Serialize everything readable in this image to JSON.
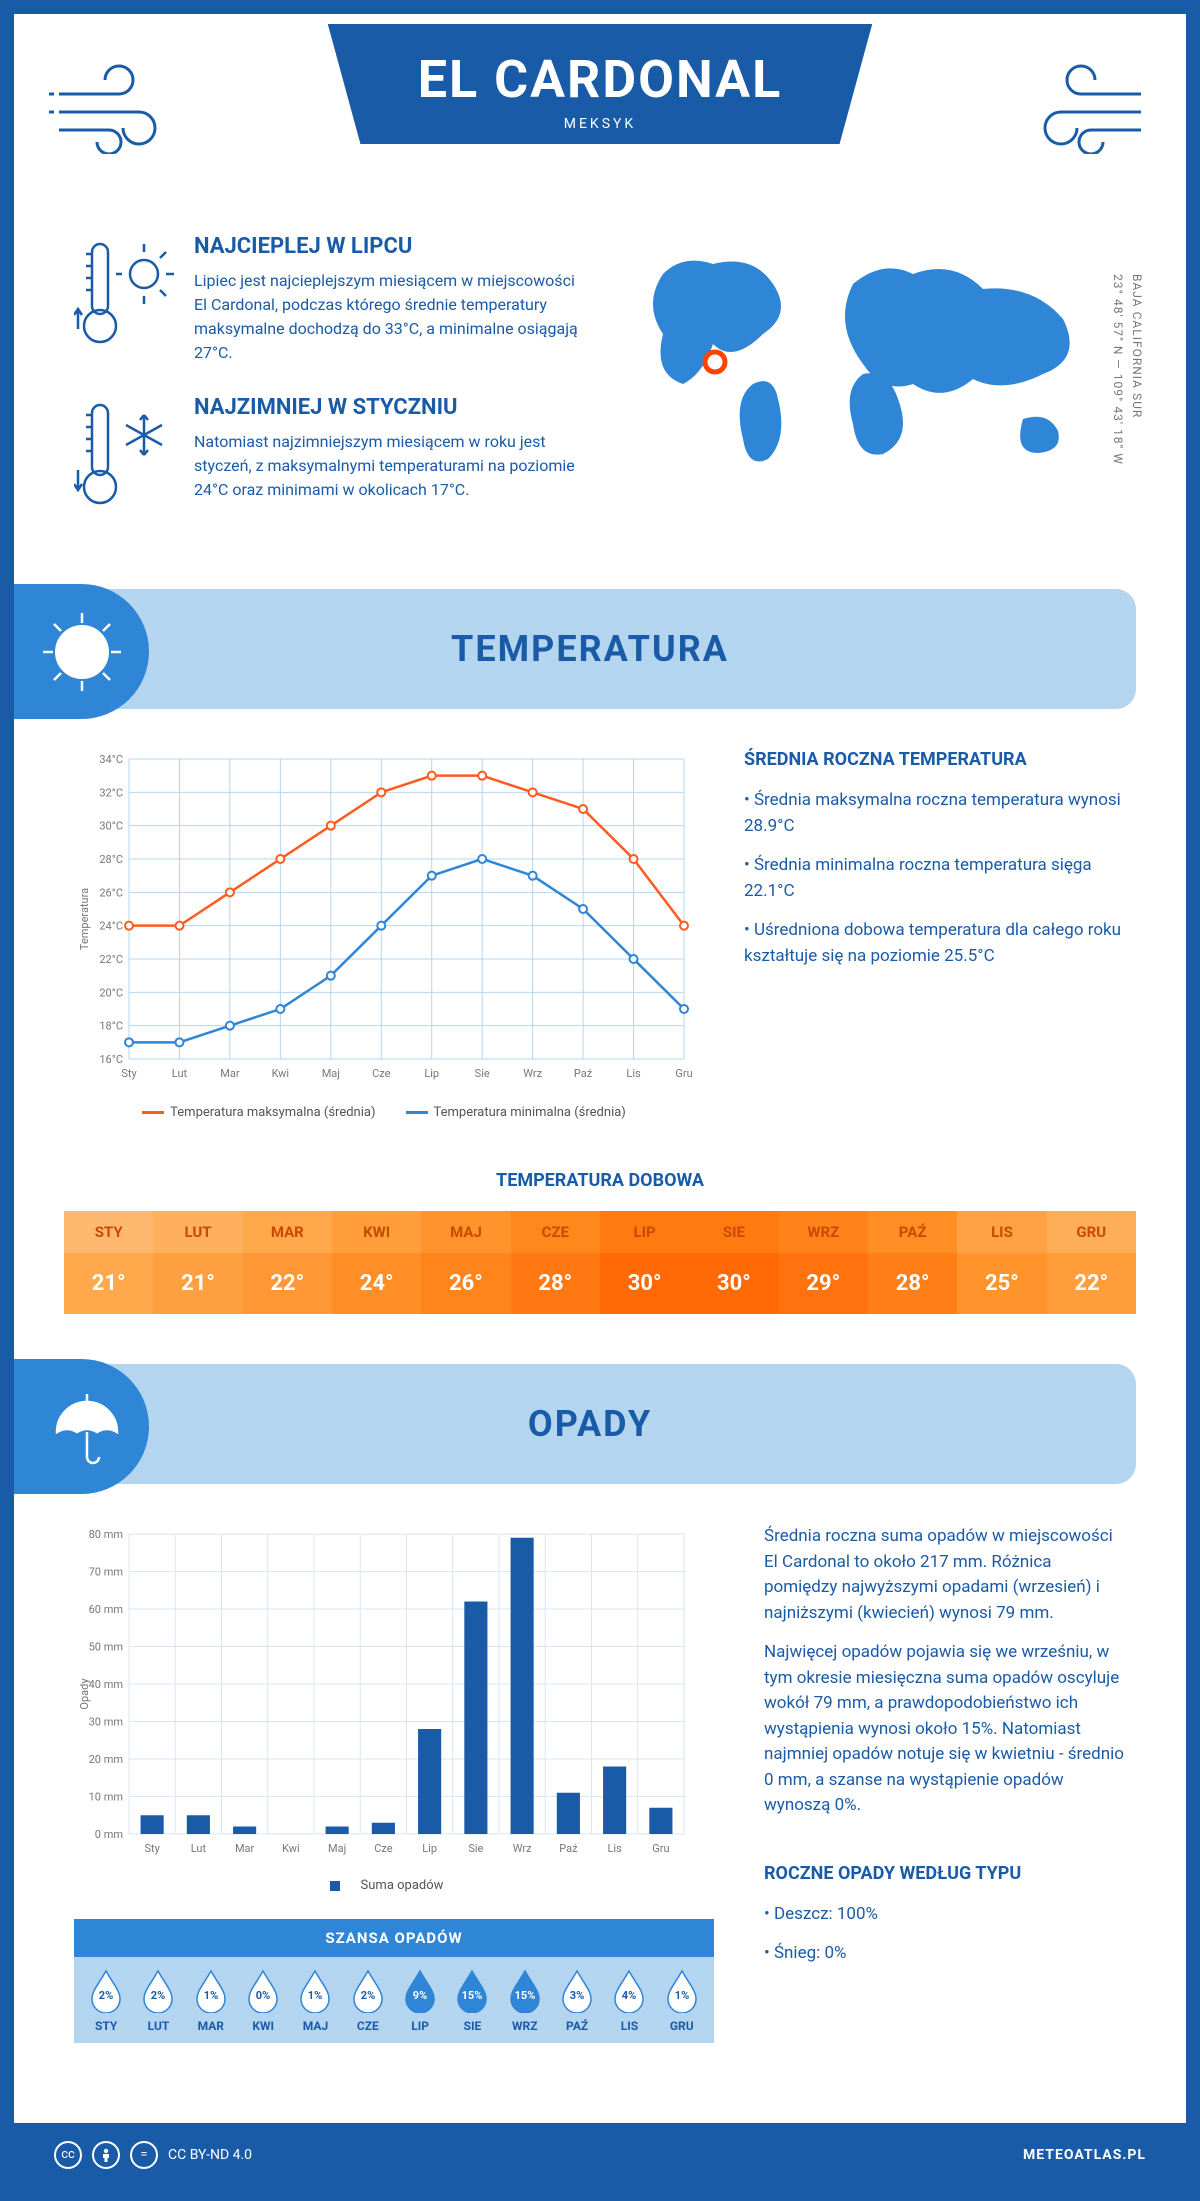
{
  "header": {
    "title": "EL CARDONAL",
    "subtitle": "MEKSYK"
  },
  "coords": {
    "lat": "23° 48' 57\" N — 109° 43' 18\" W",
    "region": "BAJA CALIFORNIA SUR"
  },
  "facts": {
    "warm": {
      "title": "NAJCIEPLEJ W LIPCU",
      "text": "Lipiec jest najcieplejszym miesiącem w miejscowości El Cardonal, podczas którego średnie temperatury maksymalne dochodzą do 33°C, a minimalne osiągają 27°C."
    },
    "cold": {
      "title": "NAJZIMNIEJ W STYCZNIU",
      "text": "Natomiast najzimniejszym miesiącem w roku jest styczeń, z maksymalnymi temperaturami na poziomie 24°C oraz minimami w okolicach 17°C."
    }
  },
  "section_temp": {
    "title": "TEMPERATURA",
    "chart": {
      "type": "line",
      "months": [
        "Sty",
        "Lut",
        "Mar",
        "Kwi",
        "Maj",
        "Cze",
        "Lip",
        "Sie",
        "Wrz",
        "Paź",
        "Lis",
        "Gru"
      ],
      "ylabel": "Temperatura",
      "ylim": [
        16,
        34
      ],
      "ytick_step": 2,
      "ytick_suffix": "°C",
      "series": [
        {
          "name": "Temperatura maksymalna (średnia)",
          "color": "#ff5b1f",
          "values": [
            24,
            24,
            26,
            28,
            30,
            32,
            33,
            33,
            32,
            31,
            28,
            24
          ]
        },
        {
          "name": "Temperatura minimalna (średnia)",
          "color": "#2f85d6",
          "values": [
            17,
            17,
            18,
            19,
            21,
            24,
            27,
            28,
            27,
            25,
            22,
            19
          ]
        }
      ],
      "grid_color": "#b3d5f0",
      "background_color": "#ffffff"
    },
    "side": {
      "title": "ŚREDNIA ROCZNA TEMPERATURA",
      "bullets": [
        "Średnia maksymalna roczna temperatura wynosi 28.9°C",
        "Średnia minimalna roczna temperatura sięga 22.1°C",
        "Uśredniona dobowa temperatura dla całego roku kształtuje się na poziomie 25.5°C"
      ]
    },
    "daily": {
      "title": "TEMPERATURA DOBOWA",
      "months": [
        "STY",
        "LUT",
        "MAR",
        "KWI",
        "MAJ",
        "CZE",
        "LIP",
        "SIE",
        "WRZ",
        "PAŹ",
        "LIS",
        "GRU"
      ],
      "values": [
        "21°",
        "21°",
        "22°",
        "24°",
        "26°",
        "28°",
        "30°",
        "30°",
        "29°",
        "28°",
        "25°",
        "22°"
      ],
      "header_colors": [
        "#ffb870",
        "#ffb05d",
        "#ffa84c",
        "#ff9e3b",
        "#ff942c",
        "#ff881d",
        "#ff7a11",
        "#ff7a11",
        "#ff831a",
        "#ff8e25",
        "#ffa144",
        "#ffae58"
      ],
      "value_colors": [
        "#ffa84c",
        "#ffa040",
        "#ff9834",
        "#ff8e27",
        "#ff841b",
        "#ff7811",
        "#ff6a06",
        "#ff6a06",
        "#ff720d",
        "#ff7e16",
        "#ff942c",
        "#ff9e3b"
      ],
      "header_text": "#c84a00",
      "value_text": "#ffffff"
    }
  },
  "section_precip": {
    "title": "OPADY",
    "chart": {
      "type": "bar",
      "months": [
        "Sty",
        "Lut",
        "Mar",
        "Kwi",
        "Maj",
        "Cze",
        "Lip",
        "Sie",
        "Wrz",
        "Paź",
        "Lis",
        "Gru"
      ],
      "ylabel": "Opady",
      "ylim": [
        0,
        80
      ],
      "ytick_step": 10,
      "ytick_suffix": " mm",
      "bar_color": "#1a5ba8",
      "grid_color": "#d7e6f5",
      "values": [
        5,
        5,
        2,
        0,
        2,
        3,
        28,
        62,
        79,
        11,
        18,
        7
      ],
      "legend": "Suma opadów"
    },
    "side": {
      "para1": "Średnia roczna suma opadów w miejscowości El Cardonal to około 217 mm. Różnica pomiędzy najwyższymi opadami (wrzesień) i najniższymi (kwiecień) wynosi 79 mm.",
      "para2": "Najwięcej opadów pojawia się we wrześniu, w tym okresie miesięczna suma opadów oscyluje wokół 79 mm, a prawdopodobieństwo ich wystąpienia wynosi około 15%. Natomiast najmniej opadów notuje się w kwietniu - średnio 0 mm, a szanse na wystąpienie opadów wynoszą 0%.",
      "type_title": "ROCZNE OPADY WEDŁUG TYPU",
      "type_bullets": [
        "Deszcz: 100%",
        "Śnieg: 0%"
      ]
    },
    "chance": {
      "title": "SZANSA OPADÓW",
      "months": [
        "STY",
        "LUT",
        "MAR",
        "KWI",
        "MAJ",
        "CZE",
        "LIP",
        "SIE",
        "WRZ",
        "PAŹ",
        "LIS",
        "GRU"
      ],
      "values": [
        "2%",
        "2%",
        "1%",
        "0%",
        "1%",
        "2%",
        "9%",
        "15%",
        "15%",
        "3%",
        "4%",
        "1%"
      ],
      "filled": [
        false,
        false,
        false,
        false,
        false,
        false,
        true,
        true,
        true,
        false,
        false,
        false
      ],
      "fill_color": "#2f85d6",
      "empty_color": "#ffffff"
    }
  },
  "footer": {
    "license": "CC BY-ND 4.0",
    "site": "METEOATLAS.PL"
  }
}
